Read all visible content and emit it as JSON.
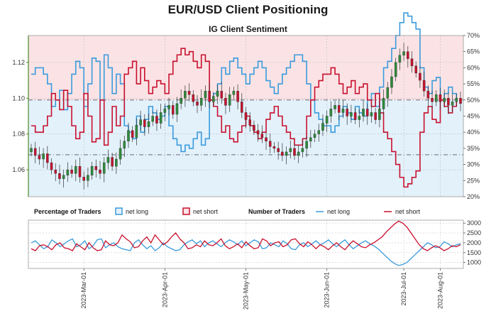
{
  "header": {
    "title": "EUR/USD Client Positioning",
    "subtitle": "IG Client Sentiment"
  },
  "chart_data": [
    {
      "type": "candlestick+line",
      "panel": "price-and-sentiment",
      "title": "IG Client Sentiment",
      "y_left_ticks": [
        "1.06",
        "1.08",
        "1.10",
        "1.12"
      ],
      "y_left_range": [
        1.045,
        1.135
      ],
      "y_right_ticks": [
        "20%",
        "25%",
        "30%",
        "35%",
        "40%",
        "45%",
        "50%",
        "55%",
        "60%",
        "65%",
        "70%"
      ],
      "y_right_range": [
        20,
        70
      ],
      "reference_levels_pct": [
        33,
        50
      ],
      "price_close": [
        1.072,
        1.068,
        1.066,
        1.069,
        1.064,
        1.06,
        1.058,
        1.055,
        1.057,
        1.06,
        1.058,
        1.062,
        1.056,
        1.054,
        1.057,
        1.062,
        1.06,
        1.058,
        1.064,
        1.067,
        1.062,
        1.066,
        1.072,
        1.076,
        1.082,
        1.078,
        1.085,
        1.088,
        1.084,
        1.087,
        1.09,
        1.086,
        1.092,
        1.094,
        1.096,
        1.091,
        1.097,
        1.1,
        1.104,
        1.102,
        1.098,
        1.096,
        1.1,
        1.104,
        1.098,
        1.101,
        1.104,
        1.1,
        1.096,
        1.102,
        1.104,
        1.098,
        1.092,
        1.088,
        1.085,
        1.082,
        1.08,
        1.078,
        1.076,
        1.073,
        1.072,
        1.07,
        1.068,
        1.07,
        1.072,
        1.068,
        1.07,
        1.072,
        1.076,
        1.078,
        1.08,
        1.082,
        1.086,
        1.09,
        1.094,
        1.096,
        1.092,
        1.094,
        1.09,
        1.092,
        1.088,
        1.09,
        1.094,
        1.09,
        1.092,
        1.088,
        1.094,
        1.1,
        1.106,
        1.112,
        1.12,
        1.124,
        1.126,
        1.122,
        1.118,
        1.114,
        1.11,
        1.104,
        1.1,
        1.098,
        1.102,
        1.098,
        1.1,
        1.096,
        1.098,
        1.1,
        1.097
      ],
      "net_long_pct": [
        58,
        60,
        60,
        58,
        55,
        48,
        50,
        53,
        47,
        52,
        58,
        62,
        60,
        48,
        55,
        63,
        62,
        50,
        64,
        60,
        52,
        58,
        55,
        42,
        40,
        38,
        45,
        40,
        44,
        48,
        46,
        44,
        45,
        48,
        42,
        38,
        36,
        34,
        36,
        35,
        38,
        40,
        36,
        38,
        50,
        52,
        55,
        60,
        58,
        62,
        63,
        60,
        58,
        55,
        58,
        60,
        62,
        60,
        56,
        54,
        52,
        55,
        58,
        60,
        62,
        64,
        64,
        62,
        55,
        50,
        46,
        44,
        42,
        42,
        40,
        42,
        45,
        48,
        46,
        44,
        48,
        46,
        45,
        50,
        52,
        48,
        54,
        60,
        62,
        66,
        70,
        74,
        77,
        76,
        74,
        72,
        60,
        54,
        52,
        56,
        57,
        50,
        52,
        54,
        52,
        50
      ],
      "net_short_pct": [
        42,
        40,
        40,
        42,
        45,
        52,
        50,
        47,
        53,
        48,
        42,
        38,
        40,
        52,
        45,
        37,
        38,
        50,
        36,
        40,
        48,
        42,
        45,
        58,
        60,
        62,
        55,
        60,
        56,
        52,
        54,
        56,
        55,
        52,
        58,
        62,
        64,
        66,
        64,
        65,
        62,
        60,
        64,
        62,
        50,
        48,
        45,
        40,
        42,
        38,
        37,
        40,
        42,
        45,
        42,
        40,
        38,
        40,
        44,
        46,
        48,
        45,
        42,
        40,
        38,
        36,
        36,
        38,
        45,
        50,
        54,
        56,
        58,
        58,
        60,
        58,
        55,
        52,
        54,
        56,
        52,
        54,
        55,
        50,
        48,
        52,
        46,
        40,
        38,
        34,
        30,
        26,
        23,
        24,
        26,
        28,
        40,
        46,
        48,
        44,
        43,
        50,
        48,
        46,
        48,
        50
      ]
    },
    {
      "type": "line",
      "panel": "number-of-traders",
      "y_right_ticks": [
        "1000",
        "1500",
        "2000",
        "2500",
        "3000"
      ],
      "y_range": [
        700,
        3150
      ],
      "series": [
        {
          "name": "net long",
          "color": "#3a9bdc",
          "values": [
            2000,
            2100,
            1900,
            1700,
            1800,
            2150,
            2000,
            1800,
            1950,
            2100,
            2200,
            1800,
            1900,
            2100,
            1700,
            1850,
            2150,
            2200,
            1750,
            1900,
            2000,
            1800,
            1700,
            1650,
            1600,
            2000,
            2150,
            1900,
            1700,
            1850,
            1600,
            1750,
            2000,
            1800,
            1700,
            1600,
            1650,
            1900,
            2050,
            2150,
            1950,
            2100,
            1800,
            2000,
            2100,
            1950,
            1800,
            2000,
            2150,
            2050,
            1900,
            2100,
            1850,
            2000,
            2150,
            2050,
            1700,
            1750,
            2000,
            1900,
            1800,
            2100,
            1950,
            1700,
            1650,
            1900,
            2000,
            1800,
            1950,
            2100,
            1900,
            2000,
            2150,
            1950,
            1800,
            2000,
            2150,
            1900,
            1700,
            1850,
            2000,
            2100,
            1950,
            1850,
            1700,
            1500,
            1300,
            1100,
            950,
            850,
            900,
            1000,
            1200,
            1400,
            1600,
            1800,
            2000,
            1900,
            1750,
            1800,
            2050,
            1950,
            1800,
            1900,
            1950
          ]
        },
        {
          "name": "net short",
          "color": "#c8102e",
          "values": [
            1700,
            1600,
            1850,
            1900,
            1800,
            1650,
            1900,
            2000,
            1750,
            1700,
            1600,
            1950,
            1800,
            1650,
            2000,
            1750,
            1600,
            1650,
            2100,
            1900,
            1850,
            2000,
            2400,
            2200,
            2050,
            1750,
            1800,
            2100,
            2300,
            2000,
            2400,
            2150,
            1900,
            2050,
            2300,
            2500,
            2200,
            2000,
            1700,
            1750,
            1900,
            1800,
            2100,
            1900,
            1850,
            2000,
            2200,
            1850,
            1700,
            1800,
            1950,
            1750,
            2050,
            1850,
            1700,
            1750,
            2200,
            2100,
            1850,
            2000,
            2050,
            1800,
            1900,
            2150,
            2200,
            1950,
            1800,
            2050,
            1900,
            1700,
            1900,
            1800,
            1650,
            1850,
            2000,
            1800,
            1650,
            1900,
            2100,
            1950,
            1800,
            1750,
            1900,
            2000,
            2150,
            2300,
            2550,
            2750,
            2950,
            3100,
            3000,
            2800,
            2500,
            2200,
            1900,
            1700,
            1600,
            1750,
            1850,
            1750,
            1600,
            1700,
            1850,
            1800,
            1900
          ]
        }
      ]
    }
  ],
  "legend": {
    "pct_title": "Percentage of Traders",
    "pct_long": "net long",
    "pct_short": "net short",
    "num_title": "Number of Traders",
    "num_long": "net long",
    "num_short": "net short"
  },
  "x_axis": {
    "ticks": [
      "2023-Mar-01",
      "2023-Apr-01",
      "2023-May-01",
      "2023-Jun-01",
      "2023-Jul-01",
      "2023-Aug-01"
    ]
  },
  "colors": {
    "net_long": "#3a9bdc",
    "net_short": "#c8102e",
    "zone_long": "#e3f1fb",
    "zone_short": "#fbe3e5",
    "candle_up": "#2e8b3a",
    "candle_down": "#c8102e",
    "axis_green": "#4a8c2a"
  }
}
